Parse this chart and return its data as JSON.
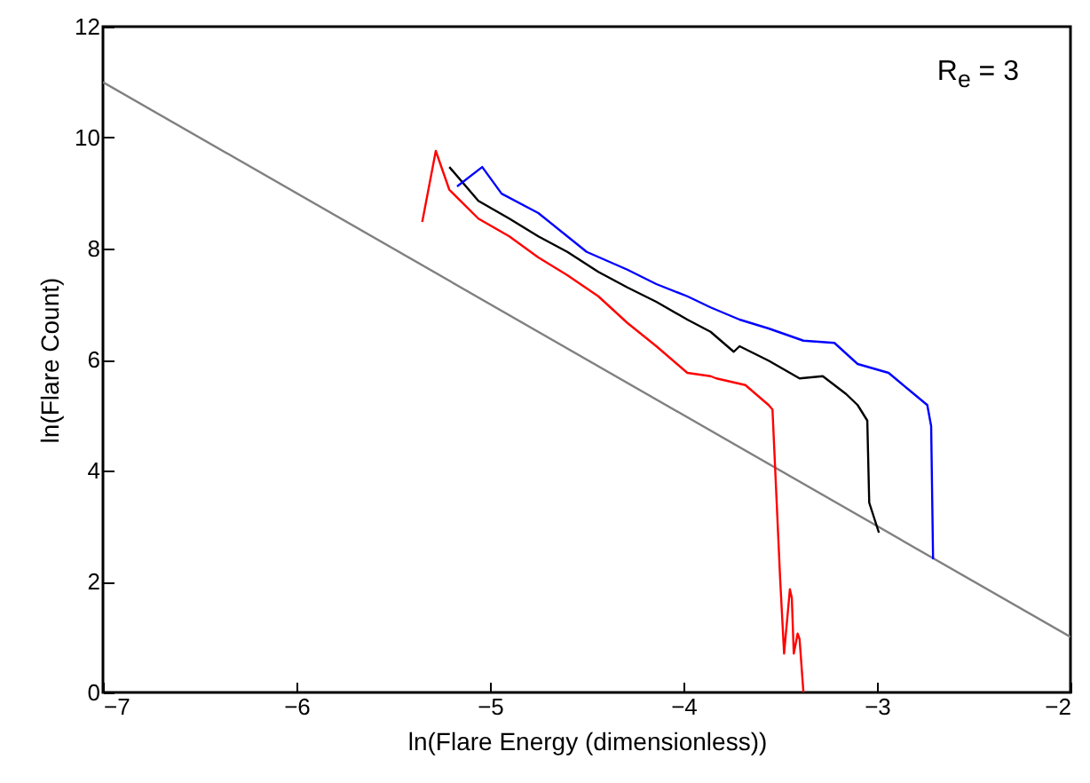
{
  "chart_data": {
    "type": "line",
    "xlabel": "ln(Flare Energy (dimensionless))",
    "ylabel": "ln(Flare Count)",
    "xlim": [
      -7,
      -2
    ],
    "ylim": [
      0,
      12
    ],
    "xticks": [
      -7,
      -6,
      -5,
      -4,
      -3,
      -2
    ],
    "yticks": [
      0,
      2,
      4,
      6,
      8,
      10,
      12
    ],
    "grid": false,
    "marker": "none",
    "annotations": [
      "R$_{e}$ = 3"
    ],
    "series": [
      {
        "color": "#808080",
        "x": [
          -7,
          -2
        ],
        "values": [
          11,
          1
        ]
      },
      {
        "color": "#ff0000",
        "x": [
          -5.35,
          -5.28,
          -5.21,
          -5.06,
          -4.9,
          -4.75,
          -4.6,
          -4.44,
          -4.29,
          -4.14,
          -3.98,
          -3.86,
          -3.83,
          -3.68,
          -3.56,
          -3.54,
          -3.5,
          -3.48,
          -3.45,
          -3.44,
          -3.43,
          -3.41,
          -3.4,
          -3.38
        ],
        "values": [
          8.48,
          9.76,
          9.06,
          8.54,
          8.22,
          7.84,
          7.52,
          7.14,
          6.66,
          6.24,
          5.76,
          5.7,
          5.66,
          5.54,
          5.18,
          5.1,
          2.02,
          0.7,
          1.86,
          1.7,
          0.7,
          1.06,
          0.96,
          0
        ]
      },
      {
        "color": "#000000",
        "x": [
          -5.21,
          -5.06,
          -4.9,
          -4.75,
          -4.6,
          -4.44,
          -4.29,
          -4.14,
          -3.98,
          -3.86,
          -3.74,
          -3.71,
          -3.56,
          -3.4,
          -3.28,
          -3.16,
          -3.1,
          -3.05,
          -3.04,
          -2.99
        ],
        "values": [
          9.47,
          8.86,
          8.54,
          8.22,
          7.94,
          7.58,
          7.3,
          7.04,
          6.72,
          6.5,
          6.14,
          6.24,
          5.98,
          5.66,
          5.7,
          5.38,
          5.18,
          4.9,
          3.42,
          2.88
        ]
      },
      {
        "color": "#0000ff",
        "x": [
          -5.17,
          -5.04,
          -4.94,
          -4.75,
          -4.6,
          -4.5,
          -4.29,
          -4.14,
          -3.98,
          -3.86,
          -3.71,
          -3.56,
          -3.38,
          -3.22,
          -3.1,
          -2.94,
          -2.83,
          -2.74,
          -2.72,
          -2.71
        ],
        "values": [
          9.12,
          9.47,
          8.99,
          8.64,
          8.22,
          7.94,
          7.62,
          7.36,
          7.14,
          6.94,
          6.72,
          6.56,
          6.34,
          6.3,
          5.92,
          5.76,
          5.44,
          5.18,
          4.8,
          2.4
        ]
      }
    ]
  }
}
